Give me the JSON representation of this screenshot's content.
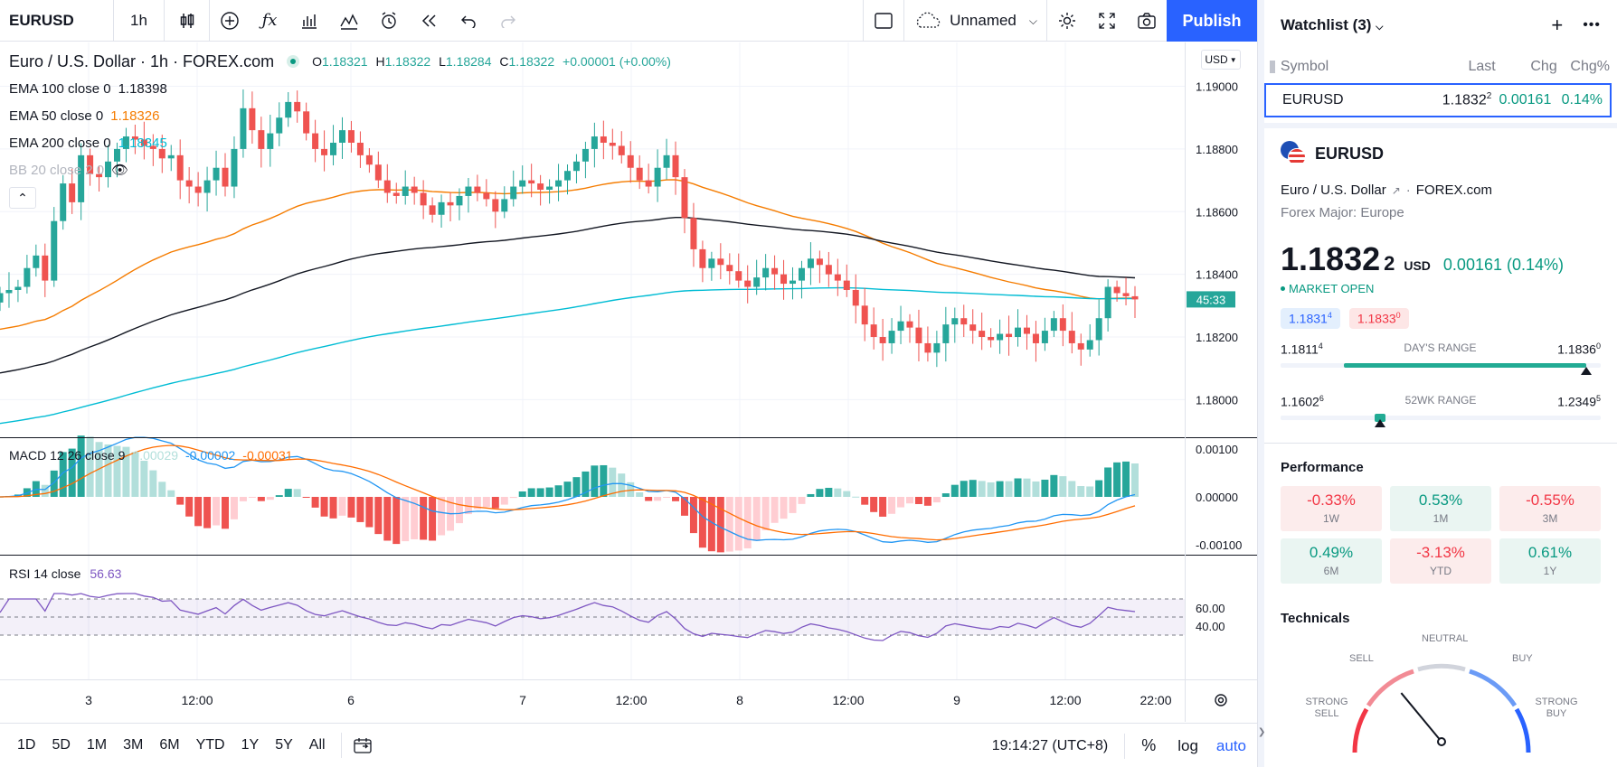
{
  "toolbar": {
    "symbol": "EURUSD",
    "interval": "1h",
    "layout_name": "Unnamed",
    "publish_label": "Publish"
  },
  "legend": {
    "title": "Euro / U.S. Dollar · 1h · FOREX.com",
    "ohlc": {
      "o_label": "O",
      "o": "1.18321",
      "h_label": "H",
      "h": "1.18322",
      "l_label": "L",
      "l": "1.18284",
      "c_label": "C",
      "c": "1.18322",
      "chg": "+0.00001 (+0.00%)"
    },
    "studies": [
      {
        "label": "EMA 100 close 0",
        "value": "1.18398",
        "color": "#131722"
      },
      {
        "label": "EMA 50 close 0",
        "value": "1.18326",
        "color": "#f57c00"
      },
      {
        "label": "EMA 200 close 0",
        "value": "1.18345",
        "color": "#00bcd4"
      },
      {
        "label": "BB 20 close 2 0",
        "value": "",
        "color": "#b2b5be"
      }
    ]
  },
  "price_axis": {
    "currency": "USD",
    "labels": [
      "1.19000",
      "1.18800",
      "1.18600",
      "1.18400",
      "1.18200",
      "1.18000"
    ],
    "countdown": "45:33"
  },
  "macd": {
    "label": "MACD 12 26 close 9",
    "values": [
      "0.00029",
      "-0.00002",
      "-0.00031"
    ],
    "colors": [
      "#b2dfdb",
      "#2196f3",
      "#ff6d00"
    ],
    "axis": [
      "0.00100",
      "0.00000",
      "-0.00100"
    ]
  },
  "rsi": {
    "label": "RSI 14 close",
    "value": "56.63",
    "axis": [
      "60.00",
      "40.00"
    ]
  },
  "time_axis": [
    "3",
    "12:00",
    "6",
    "7",
    "12:00",
    "8",
    "12:00",
    "9",
    "12:00",
    "22:00"
  ],
  "bottom": {
    "ranges": [
      "1D",
      "5D",
      "1M",
      "3M",
      "6M",
      "YTD",
      "1Y",
      "5Y",
      "All"
    ],
    "clock": "19:14:27 (UTC+8)",
    "percent": "%",
    "log": "log",
    "auto": "auto"
  },
  "watchlist": {
    "title": "Watchlist (3)",
    "columns": [
      "Symbol",
      "Last",
      "Chg",
      "Chg%"
    ],
    "rows": [
      {
        "symbol": "EURUSD",
        "last": "1.1832",
        "last_sup": "2",
        "chg": "0.00161",
        "chgp": "0.14%"
      }
    ]
  },
  "details": {
    "symbol": "EURUSD",
    "name": "Euro / U.S. Dollar",
    "exchange": "FOREX.com",
    "category": "Forex Major: Europe",
    "price": "1.1832",
    "price_sup": "2",
    "currency": "USD",
    "change": "0.00161 (0.14%)",
    "market_status": "MARKET OPEN",
    "bid": "1.1831",
    "bid_sup": "4",
    "ask": "1.1833",
    "ask_sup": "0",
    "day_low": "1.1811",
    "day_low_sup": "4",
    "day_high": "1.1836",
    "day_high_sup": "0",
    "day_range_label": "DAY'S RANGE",
    "wk_low": "1.1602",
    "wk_low_sup": "6",
    "wk_high": "1.2349",
    "wk_high_sup": "5",
    "wk_range_label": "52WK RANGE",
    "day_range_pos": 0.95,
    "wk_range_pos": 0.31
  },
  "performance": {
    "title": "Performance",
    "cells": [
      {
        "value": "-0.33%",
        "label": "1W",
        "positive": false
      },
      {
        "value": "0.53%",
        "label": "1M",
        "positive": true
      },
      {
        "value": "-0.55%",
        "label": "3M",
        "positive": false
      },
      {
        "value": "0.49%",
        "label": "6M",
        "positive": true
      },
      {
        "value": "-3.13%",
        "label": "YTD",
        "positive": false
      },
      {
        "value": "0.61%",
        "label": "1Y",
        "positive": true
      }
    ]
  },
  "technicals": {
    "title": "Technicals",
    "labels": {
      "strong_sell": "STRONG SELL",
      "sell": "SELL",
      "neutral": "NEUTRAL",
      "buy": "BUY",
      "strong_buy": "STRONG BUY"
    },
    "gauge_value": 0.28
  },
  "chart_data": {
    "type": "candlestick",
    "symbol": "EURUSD",
    "interval": "1h",
    "y_range": [
      1.1788,
      1.1914
    ],
    "closes": [
      1.1834,
      1.1835,
      1.1836,
      1.1842,
      1.1846,
      1.1838,
      1.1857,
      1.1869,
      1.1863,
      1.1878,
      1.1872,
      1.1871,
      1.1876,
      1.188,
      1.1884,
      1.1883,
      1.1881,
      1.188,
      1.1877,
      1.1878,
      1.187,
      1.1868,
      1.1866,
      1.187,
      1.1874,
      1.1868,
      1.188,
      1.1893,
      1.1886,
      1.188,
      1.1885,
      1.189,
      1.1895,
      1.1892,
      1.1885,
      1.188,
      1.1878,
      1.1882,
      1.1886,
      1.1882,
      1.1878,
      1.1875,
      1.187,
      1.1866,
      1.1865,
      1.1868,
      1.1866,
      1.1862,
      1.1859,
      1.1863,
      1.1862,
      1.1865,
      1.1868,
      1.1866,
      1.1864,
      1.186,
      1.1864,
      1.1868,
      1.187,
      1.1869,
      1.1867,
      1.1868,
      1.187,
      1.1873,
      1.1876,
      1.188,
      1.1884,
      1.1882,
      1.1881,
      1.1878,
      1.1874,
      1.187,
      1.1868,
      1.1874,
      1.1878,
      1.1871,
      1.1858,
      1.1848,
      1.1842,
      1.1845,
      1.1843,
      1.1841,
      1.1838,
      1.1836,
      1.1839,
      1.1842,
      1.184,
      1.1837,
      1.1838,
      1.1842,
      1.1845,
      1.1843,
      1.184,
      1.1838,
      1.1835,
      1.183,
      1.1824,
      1.182,
      1.1818,
      1.1822,
      1.1825,
      1.1823,
      1.1818,
      1.1815,
      1.1818,
      1.1824,
      1.1826,
      1.1824,
      1.1822,
      1.182,
      1.1819,
      1.1821,
      1.182,
      1.1823,
      1.1821,
      1.1818,
      1.1822,
      1.1826,
      1.1822,
      1.1818,
      1.1816,
      1.1819,
      1.1826,
      1.1836,
      1.1834,
      1.1833,
      1.1832
    ],
    "series": [
      {
        "name": "EMA 100 close 0",
        "last": 1.18398
      },
      {
        "name": "EMA 50 close 0",
        "last": 1.18326
      },
      {
        "name": "EMA 200 close 0",
        "last": 1.18345
      }
    ]
  }
}
